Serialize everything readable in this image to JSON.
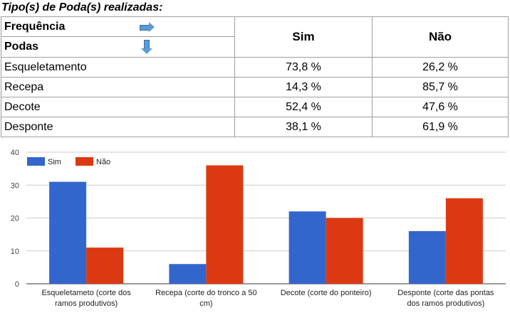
{
  "title": "Tipo(s) de Poda(s) realizadas:",
  "table": {
    "header": {
      "row_label_top": "Frequência",
      "row_label_bottom": "Podas",
      "col_sim": "Sim",
      "col_nao": "Não"
    },
    "rows": [
      {
        "label": "Esqueletamento",
        "sim": "73,8  %",
        "nao": "26,2  %"
      },
      {
        "label": "Recepa",
        "sim": "14,3  %",
        "nao": "85,7  %"
      },
      {
        "label": "Decote",
        "sim": "52,4  %",
        "nao": "47,6  %"
      },
      {
        "label": "Desponte",
        "sim": "38,1  %",
        "nao": "61,9  %"
      }
    ]
  },
  "chart_data": {
    "type": "bar",
    "categories": [
      [
        "Esqueletameto (corte dos",
        "ramos produtivos)"
      ],
      [
        "Recepa (corte do tronco a 50",
        "cm)"
      ],
      [
        "Decote (corte do ponteiro)"
      ],
      [
        "Desponte (corte das pontas",
        "dos ramos produtivos)"
      ]
    ],
    "series": [
      {
        "name": "Sim",
        "color": "#3366cc",
        "values": [
          31,
          6,
          22,
          16
        ]
      },
      {
        "name": "Não",
        "color": "#dc3912",
        "values": [
          11,
          36,
          20,
          26
        ]
      }
    ],
    "ylim": [
      0,
      40
    ],
    "yticks": [
      0,
      10,
      20,
      30,
      40
    ],
    "grid": true,
    "legend": "top-left"
  }
}
